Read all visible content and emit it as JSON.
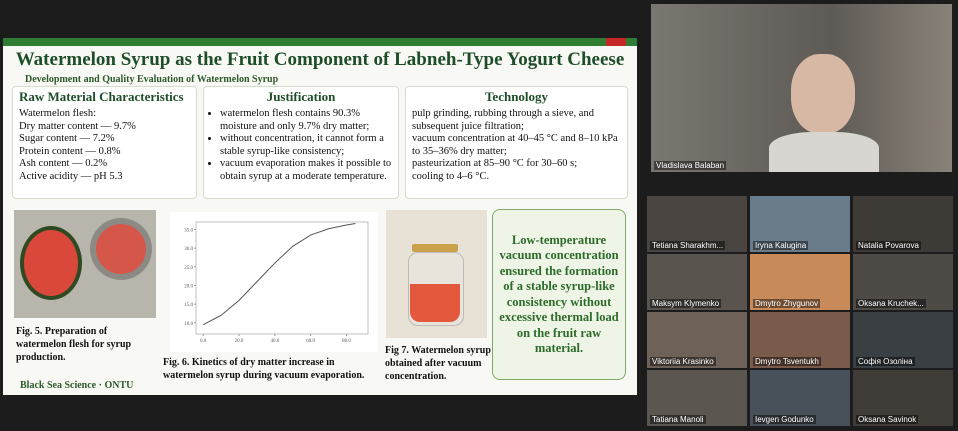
{
  "slide": {
    "title": "Watermelon Syrup as the Fruit Component of Labneh-Type Yogurt Cheese",
    "subtitle": "Development and Quality Evaluation of Watermelon Syrup",
    "boxes": [
      {
        "heading": "Raw Material Characteristics",
        "lines": [
          "Watermelon flesh:",
          "Dry matter content — 9.7%",
          "Sugar content — 7.2%",
          "Protein content — 0.8%",
          "Ash content — 0.2%",
          "Active acidity — pH 5.3"
        ]
      },
      {
        "heading": "Justification",
        "lines": [
          "watermelon flesh contains 90.3% moisture and only 9.7% dry matter;",
          "without concentration, it cannot form a stable syrup-like consistency;",
          "vacuum evaporation makes it possible to obtain syrup at a moderate temperature."
        ]
      },
      {
        "heading": "Technology",
        "lines": [
          "pulp grinding, rubbing through a sieve, and subsequent juice filtration;",
          "vacuum concentration at 40–45 °C and 8–10 kPa to 35–36% dry matter;",
          "pasteurization at 85–90 °C for 30–60 s;",
          "cooling to 4–6 °C."
        ]
      }
    ],
    "captions": [
      "Fig. 5. Preparation of watermelon flesh for syrup production.",
      "Fig. 6. Kinetics of dry matter increase in watermelon syrup during vacuum evaporation.",
      "Fig 7. Watermelon syrup obtained after vacuum concentration."
    ],
    "conclusion": "Low-temperature vacuum concentration ensured the formation of a stable syrup-like consistency without excessive thermal load on the fruit raw material.",
    "footer": "Black Sea Science · ONTU"
  },
  "chart_data": {
    "type": "line",
    "x": [
      0,
      10,
      20,
      30,
      40,
      50,
      60,
      70,
      80,
      85
    ],
    "series": [
      {
        "color": "#555555",
        "values": [
          9.5,
          12,
          16,
          21,
          26,
          30.5,
          33.5,
          35.2,
          36.2,
          36.6
        ]
      }
    ],
    "xlim": [
      -4,
      92
    ],
    "ylim": [
      7,
      37
    ],
    "xticks": [
      {
        "value": 0,
        "label": "0.0"
      },
      {
        "value": 20,
        "label": "20.0"
      },
      {
        "value": 40,
        "label": "40.0"
      },
      {
        "value": 60,
        "label": "60.0"
      },
      {
        "value": 80,
        "label": "80.0"
      }
    ],
    "yticks": [
      {
        "value": 10,
        "label": "10.0"
      },
      {
        "value": 15,
        "label": "15.0"
      },
      {
        "value": 20,
        "label": "20.0"
      },
      {
        "value": 25,
        "label": "25.0"
      },
      {
        "value": 30,
        "label": "30.0"
      },
      {
        "value": 35,
        "label": "35.0"
      }
    ],
    "grid": false
  },
  "speaker": {
    "name": "Vladislava Balaban"
  },
  "participants": [
    "Tetiana Sharakhm...",
    "Iryna Kalugina",
    "Natalia Povarova",
    "Maksym Klymenko",
    "Dmytro Zhygunov",
    "Oksana Kruchek...",
    "Viktoriia Krasinko",
    "Dmytro Tsventukh",
    "Софія Озоліна",
    "Tatiana Manoli",
    "Ievgen Godunko",
    "Oksana Savinok"
  ]
}
